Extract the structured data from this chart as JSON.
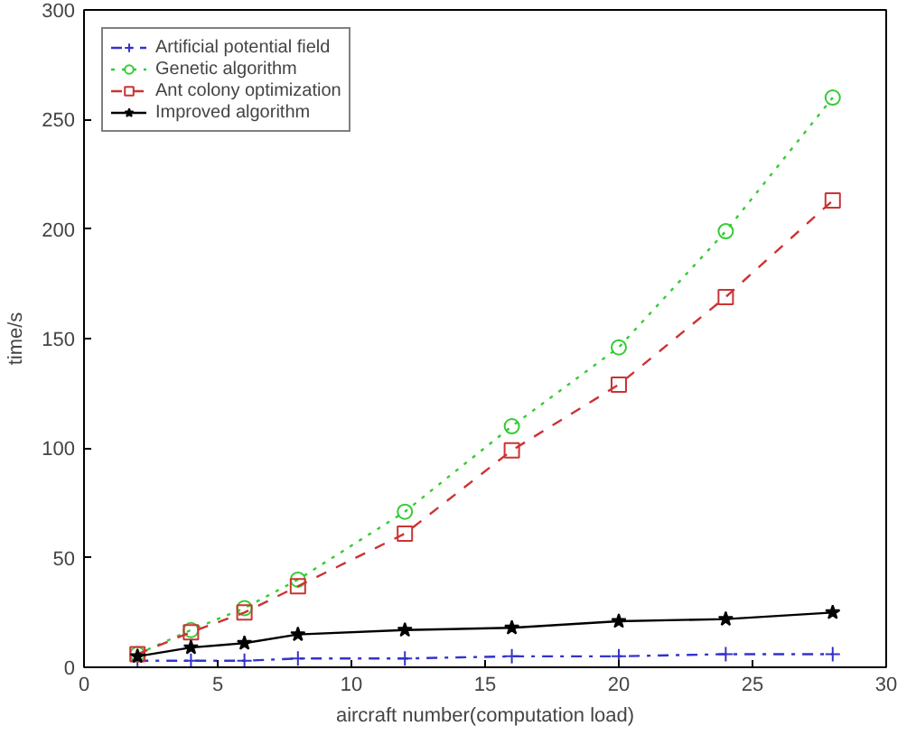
{
  "chart_data": {
    "type": "line",
    "xlabel": "aircraft number(computation load)",
    "ylabel": "time/s",
    "x": [
      2,
      4,
      6,
      8,
      12,
      16,
      20,
      24,
      28
    ],
    "xlim": [
      0,
      30
    ],
    "ylim": [
      0,
      300
    ],
    "xticks": [
      0,
      5,
      10,
      15,
      20,
      25,
      30
    ],
    "yticks": [
      0,
      50,
      100,
      150,
      200,
      250,
      300
    ],
    "grid": false,
    "legend": "top left",
    "series": [
      {
        "name": "Artificial potential field",
        "color": "#3333cc",
        "marker": "cross",
        "line_style": "dashdot",
        "values": [
          3,
          3,
          3,
          4,
          4,
          5,
          5,
          6,
          6
        ]
      },
      {
        "name": "Genetic algorithm",
        "color": "#33cc33",
        "marker": "circle",
        "line_style": "dotted",
        "values": [
          6,
          17,
          27,
          40,
          71,
          110,
          146,
          199,
          260
        ]
      },
      {
        "name": "Ant colony optimization",
        "color": "#cc3333",
        "marker": "square",
        "line_style": "dashed",
        "values": [
          6,
          16,
          25,
          37,
          61,
          99,
          129,
          169,
          213
        ]
      },
      {
        "name": "Improved algorithm",
        "color": "#000000",
        "marker": "star",
        "line_style": "solid",
        "values": [
          5,
          9,
          11,
          15,
          17,
          18,
          21,
          22,
          25
        ]
      }
    ]
  }
}
